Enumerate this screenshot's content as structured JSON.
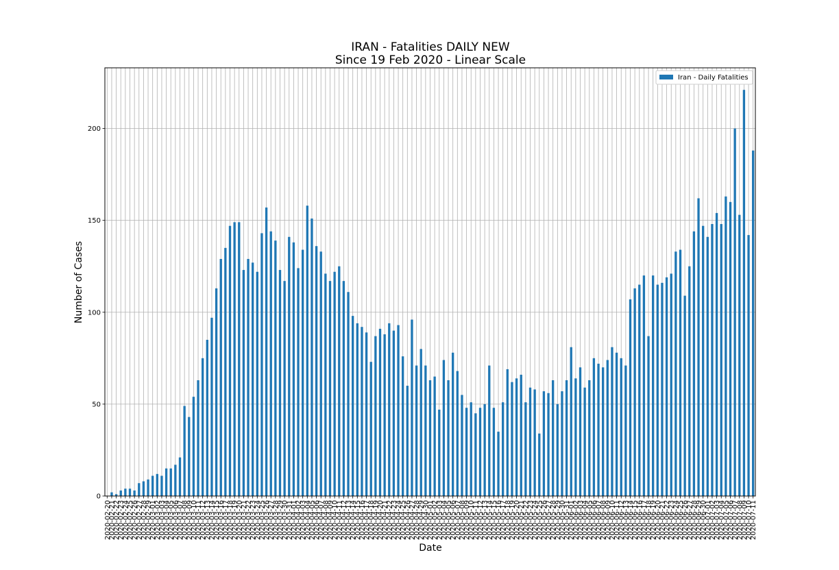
{
  "chart_data": {
    "type": "bar",
    "title": "IRAN - Fatalities DAILY NEW",
    "subtitle": "Since 19 Feb 2020 - Linear Scale",
    "xlabel": "Date",
    "ylabel": "Number of Cases",
    "ylim": [
      0,
      233
    ],
    "yticks": [
      0,
      50,
      100,
      150,
      200
    ],
    "grid": true,
    "legend_position": "top-right",
    "bar_color": "#1f77b4",
    "series": [
      {
        "name": "Iran - Daily Fatalities",
        "values": [
          0,
          2,
          1,
          3,
          4,
          4,
          3,
          7,
          8,
          9,
          11,
          12,
          11,
          15,
          15,
          17,
          21,
          49,
          43,
          54,
          63,
          75,
          85,
          97,
          113,
          129,
          135,
          147,
          149,
          149,
          123,
          129,
          127,
          122,
          143,
          157,
          144,
          139,
          123,
          117,
          141,
          138,
          124,
          134,
          158,
          151,
          136,
          133,
          121,
          117,
          122,
          125,
          117,
          111,
          98,
          94,
          92,
          89,
          73,
          87,
          91,
          88,
          94,
          90,
          93,
          76,
          60,
          96,
          71,
          80,
          71,
          63,
          65,
          47,
          74,
          63,
          78,
          68,
          55,
          48,
          51,
          45,
          48,
          50,
          71,
          48,
          35,
          51,
          69,
          62,
          64,
          66,
          51,
          59,
          58,
          34,
          57,
          56,
          63,
          50,
          57,
          63,
          81,
          64,
          70,
          59,
          63,
          75,
          72,
          70,
          74,
          81,
          78,
          75,
          71,
          107,
          113,
          115,
          120,
          87,
          120,
          115,
          116,
          119,
          121,
          133,
          134,
          109,
          125,
          144,
          162,
          147,
          141,
          148,
          154,
          148,
          163,
          160,
          200,
          153,
          221,
          142,
          188
        ]
      }
    ],
    "categories": [
      "2020-02-20",
      "2020-02-21",
      "2020-02-22",
      "2020-02-23",
      "2020-02-24",
      "2020-02-25",
      "2020-02-26",
      "2020-02-27",
      "2020-02-28",
      "2020-02-29",
      "2020-03-01",
      "2020-03-02",
      "2020-03-03",
      "2020-03-04",
      "2020-03-05",
      "2020-03-06",
      "2020-03-07",
      "2020-03-08",
      "2020-03-09",
      "2020-03-10",
      "2020-03-11",
      "2020-03-12",
      "2020-03-13",
      "2020-03-14",
      "2020-03-15",
      "2020-03-16",
      "2020-03-17",
      "2020-03-18",
      "2020-03-19",
      "2020-03-20",
      "2020-03-21",
      "2020-03-22",
      "2020-03-23",
      "2020-03-24",
      "2020-03-25",
      "2020-03-26",
      "2020-03-27",
      "2020-03-28",
      "2020-03-29",
      "2020-03-30",
      "2020-03-31",
      "2020-04-01",
      "2020-04-02",
      "2020-04-03",
      "2020-04-04",
      "2020-04-05",
      "2020-04-06",
      "2020-04-07",
      "2020-04-08",
      "2020-04-09",
      "2020-04-10",
      "2020-04-11",
      "2020-04-12",
      "2020-04-13",
      "2020-04-14",
      "2020-04-15",
      "2020-04-16",
      "2020-04-17",
      "2020-04-18",
      "2020-04-19",
      "2020-04-20",
      "2020-04-21",
      "2020-04-22",
      "2020-04-23",
      "2020-04-24",
      "2020-04-25",
      "2020-04-26",
      "2020-04-27",
      "2020-04-28",
      "2020-04-29",
      "2020-04-30",
      "2020-05-01",
      "2020-05-02",
      "2020-05-03",
      "2020-05-04",
      "2020-05-05",
      "2020-05-06",
      "2020-05-07",
      "2020-05-08",
      "2020-05-09",
      "2020-05-10",
      "2020-05-11",
      "2020-05-12",
      "2020-05-13",
      "2020-05-14",
      "2020-05-15",
      "2020-05-16",
      "2020-05-17",
      "2020-05-18",
      "2020-05-19",
      "2020-05-20",
      "2020-05-21",
      "2020-05-22",
      "2020-05-23",
      "2020-05-24",
      "2020-05-25",
      "2020-05-26",
      "2020-05-27",
      "2020-05-28",
      "2020-05-29",
      "2020-05-30",
      "2020-05-31",
      "2020-06-01",
      "2020-06-02",
      "2020-06-03",
      "2020-06-04",
      "2020-06-05",
      "2020-06-06",
      "2020-06-07",
      "2020-06-08",
      "2020-06-09",
      "2020-06-10",
      "2020-06-11",
      "2020-06-12",
      "2020-06-13",
      "2020-06-14",
      "2020-06-15",
      "2020-06-16",
      "2020-06-17",
      "2020-06-18",
      "2020-06-19",
      "2020-06-20",
      "2020-06-21",
      "2020-06-22",
      "2020-06-23",
      "2020-06-24",
      "2020-06-25",
      "2020-06-26",
      "2020-06-27",
      "2020-06-28",
      "2020-06-29",
      "2020-06-30",
      "2020-07-01",
      "2020-07-02",
      "2020-07-03",
      "2020-07-04",
      "2020-07-05",
      "2020-07-06",
      "2020-07-07",
      "2020-07-08",
      "2020-07-09",
      "2020-07-10",
      "2020-07-11"
    ]
  }
}
